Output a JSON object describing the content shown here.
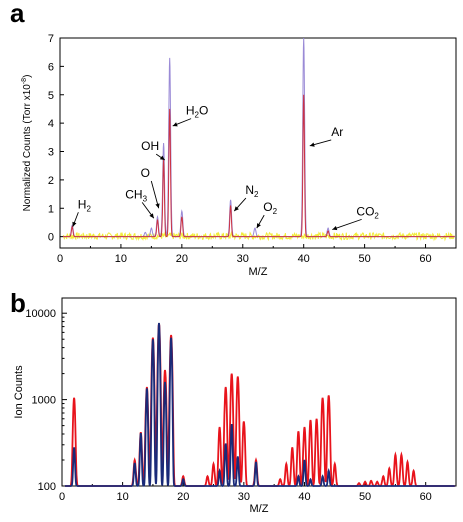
{
  "panels": {
    "a": "a",
    "b": "b"
  },
  "colors": {
    "a_yellow": "#f2ec3a",
    "a_purple": "#9a8ad6",
    "a_red": "#cc3344",
    "b_red": "#e8141c",
    "b_navy": "#1a2a78"
  },
  "chart_data": [
    {
      "type": "line",
      "panel": "a",
      "xlabel": "M/Z",
      "ylabel": "Normalized Counts (Torr x10",
      "ylabel_exp": "-8",
      "ylabel_close": ")",
      "xlim": [
        0,
        65
      ],
      "ylim": [
        -0.4,
        7
      ],
      "xticks": [
        0,
        10,
        20,
        30,
        40,
        50,
        60
      ],
      "yticks": [
        0,
        1,
        2,
        3,
        4,
        5,
        6,
        7
      ],
      "grid": false,
      "series": [
        {
          "color": "#f2ec3a",
          "noise": 0.12
        },
        {
          "color": "#9a8ad6",
          "peaks": [
            [
              2,
              0.4
            ],
            [
              14,
              0.15
            ],
            [
              15,
              0.3
            ],
            [
              16,
              0.7
            ],
            [
              17,
              3.3
            ],
            [
              18,
              6.3
            ],
            [
              20,
              0.9
            ],
            [
              28,
              1.3
            ],
            [
              32,
              0.3
            ],
            [
              40,
              7.0
            ],
            [
              44,
              0.3
            ]
          ]
        },
        {
          "color": "#cc3344",
          "peaks": [
            [
              2,
              0.35
            ],
            [
              16,
              0.6
            ],
            [
              17,
              2.7
            ],
            [
              18,
              4.5
            ],
            [
              20,
              0.7
            ],
            [
              28,
              1.1
            ],
            [
              40,
              5.0
            ],
            [
              44,
              0.2
            ]
          ]
        }
      ],
      "annotations": [
        {
          "base": "H",
          "sub": "2",
          "x": 2
        },
        {
          "base": "CH",
          "sub": "3",
          "x": 15
        },
        {
          "base": "O",
          "sub": "",
          "x": 16
        },
        {
          "base": "OH",
          "sub": "",
          "x": 17
        },
        {
          "base": "H",
          "sub": "2",
          "tail": "O",
          "x": 18
        },
        {
          "base": "N",
          "sub": "2",
          "x": 28
        },
        {
          "base": "O",
          "sub": "2",
          "x": 32
        },
        {
          "base": "Ar",
          "sub": "",
          "x": 40
        },
        {
          "base": "CO",
          "sub": "2",
          "x": 44
        }
      ]
    },
    {
      "type": "line",
      "panel": "b",
      "xlabel": "M/Z",
      "ylabel": "Ion Counts",
      "yscale": "log",
      "xlim": [
        0,
        65
      ],
      "ylim": [
        100,
        15000
      ],
      "xticks": [
        0,
        10,
        20,
        30,
        40,
        50,
        60
      ],
      "yticks": [
        100,
        1000,
        10000
      ],
      "grid": false,
      "series": [
        {
          "color": "#e8141c",
          "peaks": [
            [
              2,
              1050
            ],
            [
              12,
              200
            ],
            [
              13,
              420
            ],
            [
              14,
              1400
            ],
            [
              15,
              5200
            ],
            [
              16,
              7600
            ],
            [
              17,
              2200
            ],
            [
              18,
              5600
            ],
            [
              20,
              130
            ],
            [
              24,
              130
            ],
            [
              25,
              180
            ],
            [
              26,
              480
            ],
            [
              27,
              1400
            ],
            [
              28,
              2000
            ],
            [
              29,
              1850
            ],
            [
              30,
              560
            ],
            [
              32,
              200
            ],
            [
              36,
              120
            ],
            [
              37,
              180
            ],
            [
              38,
              280
            ],
            [
              39,
              430
            ],
            [
              40,
              480
            ],
            [
              41,
              580
            ],
            [
              42,
              600
            ],
            [
              43,
              1050
            ],
            [
              44,
              1120
            ],
            [
              45,
              180
            ],
            [
              49,
              108
            ],
            [
              50,
              112
            ],
            [
              51,
              115
            ],
            [
              52,
              112
            ],
            [
              53,
              130
            ],
            [
              54,
              160
            ],
            [
              55,
              230
            ],
            [
              56,
              230
            ],
            [
              57,
              190
            ],
            [
              58,
              150
            ]
          ]
        },
        {
          "color": "#1a2a78",
          "peaks": [
            [
              2,
              280
            ],
            [
              12,
              185
            ],
            [
              13,
              410
            ],
            [
              14,
              1350
            ],
            [
              15,
              5000
            ],
            [
              16,
              7700
            ],
            [
              17,
              1600
            ],
            [
              18,
              5200
            ],
            [
              20,
              120
            ],
            [
              26,
              150
            ],
            [
              27,
              310
            ],
            [
              28,
              520
            ],
            [
              29,
              220
            ],
            [
              32,
              190
            ],
            [
              39,
              130
            ],
            [
              40,
              200
            ],
            [
              41,
              120
            ],
            [
              43,
              130
            ],
            [
              44,
              150
            ]
          ]
        }
      ]
    }
  ]
}
